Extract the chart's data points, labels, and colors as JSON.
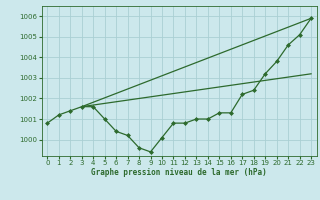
{
  "title": "Graphe pression niveau de la mer (hPa)",
  "bg_color": "#cce8ec",
  "grid_color": "#aacfd4",
  "line_color": "#2d6a2d",
  "xlim": [
    -0.5,
    23.5
  ],
  "ylim": [
    999.2,
    1006.5
  ],
  "yticks": [
    1000,
    1001,
    1002,
    1003,
    1004,
    1005,
    1006
  ],
  "xticks": [
    0,
    1,
    2,
    3,
    4,
    5,
    6,
    7,
    8,
    9,
    10,
    11,
    12,
    13,
    14,
    15,
    16,
    17,
    18,
    19,
    20,
    21,
    22,
    23
  ],
  "line1_x": [
    0,
    1,
    2,
    3,
    4,
    5,
    6,
    7,
    8,
    9,
    10,
    11,
    12,
    13,
    14,
    15,
    16,
    17,
    18,
    19,
    20,
    21,
    22,
    23
  ],
  "line1_y": [
    1000.8,
    1001.2,
    1001.4,
    1001.6,
    1001.6,
    1001.0,
    1000.4,
    1000.2,
    999.6,
    999.4,
    1000.1,
    1000.8,
    1000.8,
    1001.0,
    1001.0,
    1001.3,
    1001.3,
    1002.2,
    1002.4,
    1003.2,
    1003.8,
    1004.6,
    1005.1,
    1005.9
  ],
  "line2_x": [
    3,
    23
  ],
  "line2_y": [
    1001.6,
    1003.2
  ],
  "line3_x": [
    3,
    23
  ],
  "line3_y": [
    1001.6,
    1005.9
  ],
  "marker": "D",
  "marker_size": 2.0,
  "linewidth": 0.9,
  "tick_fontsize": 5.0,
  "label_fontsize": 5.5
}
